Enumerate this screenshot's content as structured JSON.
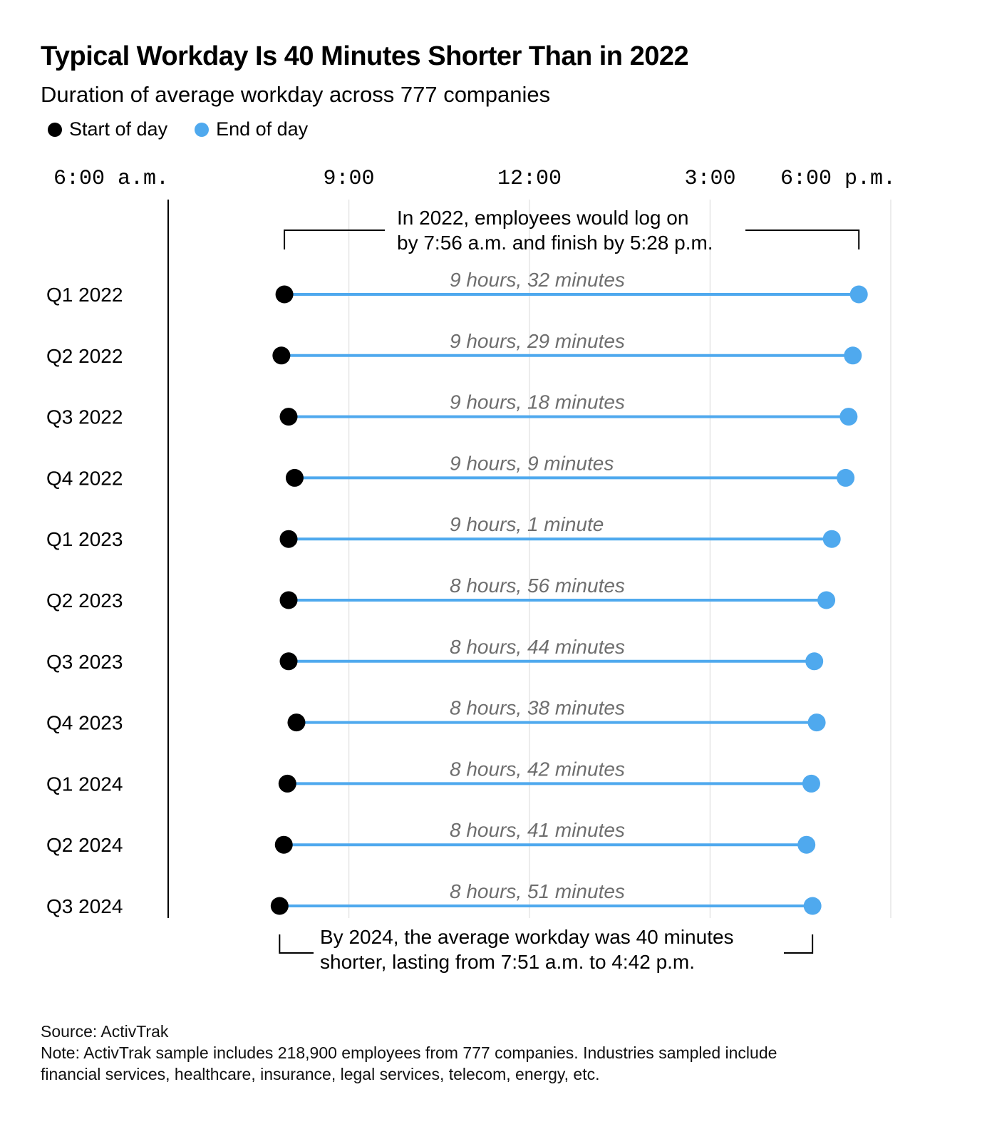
{
  "title": "Typical Workday Is 40 Minutes Shorter Than in 2022",
  "subtitle": "Duration of average workday across 777 companies",
  "legend": {
    "start_label": "Start of day",
    "end_label": "End of day",
    "start_color": "#000000",
    "end_color": "#4fa9ee"
  },
  "annotations": {
    "top": [
      "In 2022, employees would log on",
      "by 7:56 a.m. and finish by 5:28 p.m."
    ],
    "bottom": [
      "By 2024, the average workday was 40 minutes",
      "shorter, lasting from 7:51 a.m. to 4:42 p.m."
    ]
  },
  "footer": {
    "source": "Source: ActivTrak",
    "note_line1": "Note: ActivTrak sample includes 218,900 employees from 777 companies. Industries sampled include",
    "note_line2": "financial services, healthcare, insurance, legal services, telecom, energy, etc."
  },
  "chart_data": {
    "type": "dumbbell",
    "x_axis": {
      "unit": "hour of day",
      "range": [
        6,
        18
      ],
      "ticks": [
        {
          "value": 6,
          "label": "6:00 a.m."
        },
        {
          "value": 9,
          "label": "9:00"
        },
        {
          "value": 12,
          "label": "12:00"
        },
        {
          "value": 15,
          "label": "3:00"
        },
        {
          "value": 18,
          "label": "6:00 p.m."
        }
      ],
      "gridlines": [
        9,
        12,
        15,
        18
      ]
    },
    "series": [
      {
        "name": "Start of day",
        "color": "#000000"
      },
      {
        "name": "End of day",
        "color": "#4fa9ee"
      }
    ],
    "rows": [
      {
        "category": "Q1 2022",
        "start": 7.93,
        "end": 17.47,
        "duration_label": "9 hours, 32 minutes"
      },
      {
        "category": "Q2 2022",
        "start": 7.88,
        "end": 17.37,
        "duration_label": "9 hours, 29 minutes"
      },
      {
        "category": "Q3 2022",
        "start": 8.0,
        "end": 17.3,
        "duration_label": "9 hours, 18 minutes"
      },
      {
        "category": "Q4 2022",
        "start": 8.1,
        "end": 17.25,
        "duration_label": "9 hours, 9 minutes"
      },
      {
        "category": "Q1 2023",
        "start": 8.0,
        "end": 17.02,
        "duration_label": "9 hours, 1 minute"
      },
      {
        "category": "Q2 2023",
        "start": 8.0,
        "end": 16.93,
        "duration_label": "8 hours, 56 minutes"
      },
      {
        "category": "Q3 2023",
        "start": 8.0,
        "end": 16.73,
        "duration_label": "8 hours, 44 minutes"
      },
      {
        "category": "Q4 2023",
        "start": 8.13,
        "end": 16.77,
        "duration_label": "8 hours, 38 minutes"
      },
      {
        "category": "Q1 2024",
        "start": 7.98,
        "end": 16.68,
        "duration_label": "8 hours, 42 minutes"
      },
      {
        "category": "Q2 2024",
        "start": 7.92,
        "end": 16.6,
        "duration_label": "8 hours, 41 minutes"
      },
      {
        "category": "Q3 2024",
        "start": 7.85,
        "end": 16.7,
        "duration_label": "8 hours, 51 minutes"
      }
    ]
  }
}
